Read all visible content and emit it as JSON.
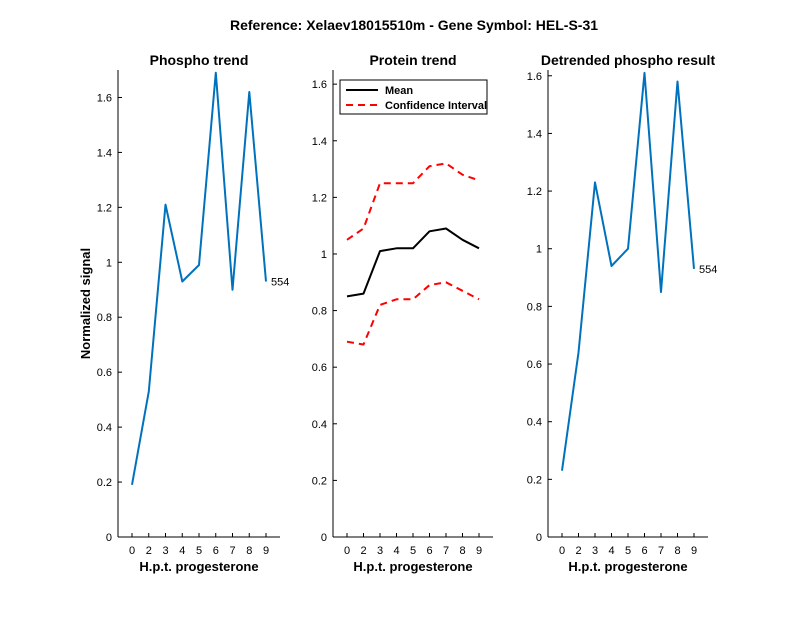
{
  "figure_title": "Reference:  Xelaev18015510m - Gene Symbol:  HEL-S-31",
  "colors": {
    "blue": "#0072BD",
    "black": "#000000",
    "red": "#FF0000"
  },
  "chart_data": [
    {
      "type": "line",
      "title": "Phospho trend",
      "xlabel": "H.p.t. progesterone",
      "ylabel": "Normalized signal",
      "x_ticks": [
        "0",
        "2",
        "3",
        "4",
        "5",
        "6",
        "7",
        "8",
        "9"
      ],
      "ylim": [
        0,
        1.7
      ],
      "y_ticks": [
        0,
        0.2,
        0.4,
        0.6,
        0.8,
        1,
        1.2,
        1.4,
        1.6
      ],
      "y_tick_labels": [
        "0",
        "0.2",
        "0.4",
        "0.6",
        "0.8",
        "1",
        "1.2",
        "1.4",
        "1.6"
      ],
      "series": [
        {
          "color": "blue",
          "style": "solid",
          "values": [
            0.19,
            0.53,
            1.21,
            0.93,
            0.99,
            1.69,
            0.9,
            1.62,
            0.93
          ]
        }
      ],
      "end_label": "554"
    },
    {
      "type": "line",
      "title": "Protein trend",
      "xlabel": "H.p.t. progesterone",
      "ylabel": "",
      "x_ticks": [
        "0",
        "2",
        "3",
        "4",
        "5",
        "6",
        "7",
        "8",
        "9"
      ],
      "ylim": [
        0,
        1.65
      ],
      "y_ticks": [
        0,
        0.2,
        0.4,
        0.6,
        0.8,
        1,
        1.2,
        1.4,
        1.6
      ],
      "y_tick_labels": [
        "0",
        "0.2",
        "0.4",
        "0.6",
        "0.8",
        "1",
        "1.2",
        "1.4",
        "1.6"
      ],
      "legend": {
        "position": "top-left",
        "entries": [
          "Mean",
          "Confidence Interval"
        ]
      },
      "series": [
        {
          "name": "Mean",
          "color": "black",
          "style": "solid",
          "values": [
            0.85,
            0.86,
            1.01,
            1.02,
            1.02,
            1.08,
            1.09,
            1.05,
            1.02
          ]
        },
        {
          "name": "Confidence Interval",
          "color": "red",
          "style": "dashed",
          "values": [
            1.05,
            1.09,
            1.25,
            1.25,
            1.25,
            1.31,
            1.32,
            1.28,
            1.26
          ]
        },
        {
          "name": "Confidence Interval",
          "color": "red",
          "style": "dashed",
          "legend": false,
          "values": [
            0.69,
            0.68,
            0.82,
            0.84,
            0.84,
            0.89,
            0.9,
            0.87,
            0.84
          ]
        }
      ]
    },
    {
      "type": "line",
      "title": "Detrended phospho result",
      "xlabel": "H.p.t. progesterone",
      "ylabel": "",
      "x_ticks": [
        "0",
        "2",
        "3",
        "4",
        "5",
        "6",
        "7",
        "8",
        "9"
      ],
      "ylim": [
        0,
        1.62
      ],
      "y_ticks": [
        0,
        0.2,
        0.4,
        0.6,
        0.8,
        1,
        1.2,
        1.4,
        1.6
      ],
      "y_tick_labels": [
        "0",
        "0.2",
        "0.4",
        "0.6",
        "0.8",
        "1",
        "1.2",
        "1.4",
        "1.6"
      ],
      "series": [
        {
          "color": "blue",
          "style": "solid",
          "values": [
            0.23,
            0.64,
            1.23,
            0.94,
            1.0,
            1.61,
            0.85,
            1.58,
            0.93
          ]
        }
      ],
      "end_label": "554"
    }
  ]
}
